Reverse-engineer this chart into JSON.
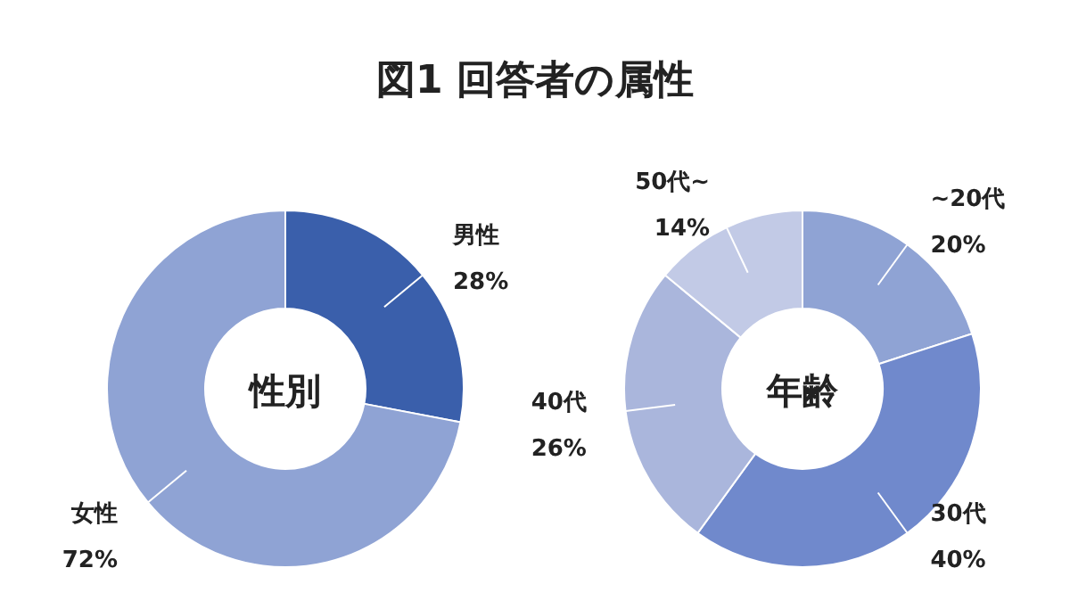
{
  "chart_data": [
    {
      "type": "other",
      "title": "図1 回答者の属性"
    },
    {
      "type": "donut",
      "title": "性別",
      "categories": [
        "男性",
        "女性"
      ],
      "values": [
        28,
        72
      ],
      "colors": [
        "#3a5fab",
        "#8fa3d4"
      ],
      "value_labels": [
        "28%",
        "72%"
      ]
    },
    {
      "type": "donut",
      "title": "年齢",
      "categories": [
        "~20代",
        "30代",
        "40代",
        "50代~"
      ],
      "values": [
        20,
        40,
        26,
        14
      ],
      "colors": [
        "#8fa3d4",
        "#7089cc",
        "#aab6dc",
        "#c2cae6"
      ],
      "value_labels": [
        "20%",
        "40%",
        "26%",
        "14%"
      ]
    }
  ]
}
